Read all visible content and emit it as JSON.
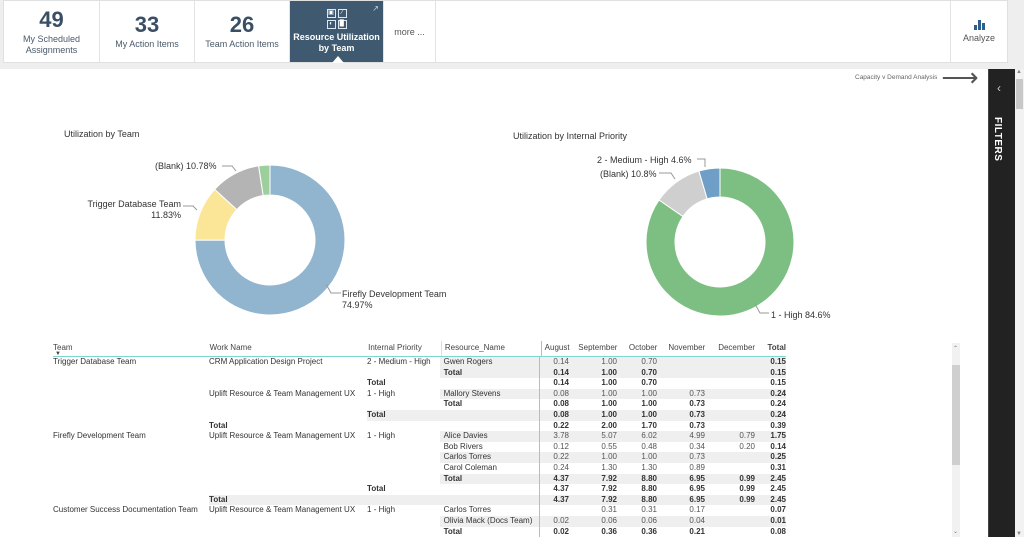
{
  "tiles": [
    {
      "number": "49",
      "label": "My Scheduled Assignments"
    },
    {
      "number": "33",
      "label": "My Action Items"
    },
    {
      "number": "26",
      "label": "Team Action Items"
    }
  ],
  "active_tile": {
    "label_line1": "Resource Utilization",
    "label_line2": "by Team",
    "icon": "report-grid-icon",
    "external_icon": "external-link-icon"
  },
  "more_label": "more ...",
  "analyze_label": "Analyze",
  "capacity_link": "Capacity v Demand Analysis",
  "filters_label": "FILTERS",
  "chart_data": [
    {
      "type": "pie",
      "title": "Utilization by Team",
      "slices": [
        {
          "label": "Firefly Development Team",
          "value": 74.97,
          "display": "74.97%",
          "color": "#91b4cf"
        },
        {
          "label": "Trigger Database Team",
          "value": 11.83,
          "display": "11.83%",
          "color": "#fbe597"
        },
        {
          "label": "(Blank)",
          "value": 10.78,
          "display": "10.78%",
          "color": "#b4b4b4"
        },
        {
          "label": "Customer Success Documentation Team",
          "value": 2.42,
          "display": "",
          "color": "#9ccf9c"
        }
      ]
    },
    {
      "type": "pie",
      "title": "Utilization by Internal Priority",
      "slices": [
        {
          "label": "1 - High",
          "value": 84.6,
          "display": "84.6%",
          "color": "#7dbf83"
        },
        {
          "label": "(Blank)",
          "value": 10.8,
          "display": "10.8%",
          "color": "#cfcfcf"
        },
        {
          "label": "2 - Medium - High",
          "value": 4.6,
          "display": "4.6%",
          "color": "#6f9fc6"
        }
      ]
    }
  ],
  "table": {
    "headers": [
      "Team",
      "Work Name",
      "Internal Priority",
      "Resource_Name",
      "August",
      "September",
      "October",
      "November",
      "December",
      "Total"
    ],
    "rows": [
      {
        "team": "Trigger Database Team",
        "work": "CRM Application Design Project",
        "prio": "2 - Medium - High",
        "res": "Gwen Rogers",
        "v": [
          "0.14",
          "1.00",
          "0.70",
          "",
          "",
          "0.15"
        ],
        "shade": "res",
        "bold": false
      },
      {
        "team": "",
        "work": "",
        "prio": "",
        "res": "Total",
        "v": [
          "0.14",
          "1.00",
          "0.70",
          "",
          "",
          "0.15"
        ],
        "shade": "res",
        "bold": true
      },
      {
        "team": "",
        "work": "",
        "prio": "Total",
        "res": "",
        "v": [
          "0.14",
          "1.00",
          "0.70",
          "",
          "",
          "0.15"
        ],
        "shade": "",
        "bold": true
      },
      {
        "team": "",
        "work": "Uplift Resource & Team Management UX",
        "prio": "1 - High",
        "res": "Mallory Stevens",
        "v": [
          "0.08",
          "1.00",
          "1.00",
          "0.73",
          "",
          "0.24"
        ],
        "shade": "res",
        "bold": false
      },
      {
        "team": "",
        "work": "",
        "prio": "",
        "res": "Total",
        "v": [
          "0.08",
          "1.00",
          "1.00",
          "0.73",
          "",
          "0.24"
        ],
        "shade": "",
        "bold": true
      },
      {
        "team": "",
        "work": "",
        "prio": "Total",
        "res": "",
        "v": [
          "0.08",
          "1.00",
          "1.00",
          "0.73",
          "",
          "0.24"
        ],
        "shade": "prio",
        "bold": true
      },
      {
        "team": "",
        "work": "Total",
        "prio": "",
        "res": "",
        "v": [
          "0.22",
          "2.00",
          "1.70",
          "0.73",
          "",
          "0.39"
        ],
        "shade": "",
        "bold": true
      },
      {
        "team": "Firefly Development Team",
        "work": "Uplift Resource & Team Management UX",
        "prio": "1 - High",
        "res": "Alice Davies",
        "v": [
          "3.78",
          "5.07",
          "6.02",
          "4.99",
          "0.79",
          "1.75"
        ],
        "shade": "res",
        "bold": false
      },
      {
        "team": "",
        "work": "",
        "prio": "",
        "res": "Bob Rivers",
        "v": [
          "0.12",
          "0.55",
          "0.48",
          "0.34",
          "0.20",
          "0.14"
        ],
        "shade": "",
        "bold": false
      },
      {
        "team": "",
        "work": "",
        "prio": "",
        "res": "Carlos Torres",
        "v": [
          "0.22",
          "1.00",
          "1.00",
          "0.73",
          "",
          "0.25"
        ],
        "shade": "res",
        "bold": false
      },
      {
        "team": "",
        "work": "",
        "prio": "",
        "res": "Carol Coleman",
        "v": [
          "0.24",
          "1.30",
          "1.30",
          "0.89",
          "",
          "0.31"
        ],
        "shade": "",
        "bold": false
      },
      {
        "team": "",
        "work": "",
        "prio": "",
        "res": "Total",
        "v": [
          "4.37",
          "7.92",
          "8.80",
          "6.95",
          "0.99",
          "2.45"
        ],
        "shade": "res",
        "bold": true
      },
      {
        "team": "",
        "work": "",
        "prio": "Total",
        "res": "",
        "v": [
          "4.37",
          "7.92",
          "8.80",
          "6.95",
          "0.99",
          "2.45"
        ],
        "shade": "",
        "bold": true
      },
      {
        "team": "",
        "work": "Total",
        "prio": "",
        "res": "",
        "v": [
          "4.37",
          "7.92",
          "8.80",
          "6.95",
          "0.99",
          "2.45"
        ],
        "shade": "work",
        "bold": true
      },
      {
        "team": "Customer Success Documentation Team",
        "work": "Uplift Resource & Team Management UX",
        "prio": "1 - High",
        "res": "Carlos Torres",
        "v": [
          "",
          "0.31",
          "0.31",
          "0.17",
          "",
          "0.07"
        ],
        "shade": "",
        "bold": false
      },
      {
        "team": "",
        "work": "",
        "prio": "",
        "res": "Olivia Mack (Docs Team)",
        "v": [
          "0.02",
          "0.06",
          "0.06",
          "0.04",
          "",
          "0.01"
        ],
        "shade": "res",
        "bold": false
      },
      {
        "team": "",
        "work": "",
        "prio": "",
        "res": "Total",
        "v": [
          "0.02",
          "0.36",
          "0.36",
          "0.21",
          "",
          "0.08"
        ],
        "shade": "",
        "bold": true
      }
    ]
  }
}
